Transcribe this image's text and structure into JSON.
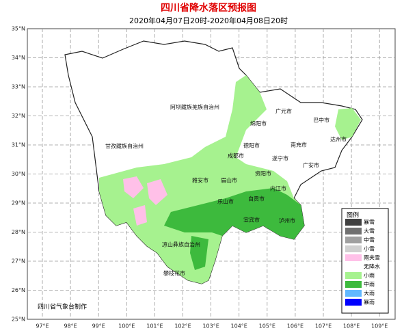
{
  "title": "四川省降水落区预报图",
  "subtitle": "2020年04月07日20时-2020年04月08日20时",
  "latitude_labels": [
    "35°N",
    "34°N",
    "33°N",
    "32°N",
    "31°N",
    "30°N",
    "29°N",
    "28°N",
    "27°N",
    "26°N",
    "25°N"
  ],
  "longitude_labels": [
    "97°E",
    "98°E",
    "99°E",
    "100°E",
    "101°E",
    "102°E",
    "103°E",
    "104°E",
    "105°E",
    "106°E",
    "107°E",
    "108°E",
    "109°E"
  ],
  "regions": [
    "阿坝藏族羌族自治州",
    "甘孜藏族自治州",
    "凉山彝族自治州",
    "攀枝花市",
    "广元市",
    "巴中市",
    "绵阳市",
    "德阳市",
    "成都市",
    "南充市",
    "达州市",
    "遂宁市",
    "广安市",
    "资阳市",
    "雅安市",
    "眉山市",
    "内江市",
    "乐山市",
    "自贡市",
    "宜宾市",
    "泸州市"
  ],
  "legend": {
    "title": "图例",
    "items": [
      {
        "label": "暴雪",
        "color": "#404040"
      },
      {
        "label": "大雪",
        "color": "#707070"
      },
      {
        "label": "中雪",
        "color": "#a0a0a0"
      },
      {
        "label": "小雪",
        "color": "#d0d0d0"
      },
      {
        "label": "雨夹雪",
        "color": "#ffc0e8"
      },
      {
        "label": "无降水",
        "color": "#ffffff"
      },
      {
        "label": "小雨",
        "color": "#a6f28f"
      },
      {
        "label": "中雨",
        "color": "#3dba3d"
      },
      {
        "label": "大雨",
        "color": "#61b8ff"
      },
      {
        "label": "暴雨",
        "color": "#0000fe"
      }
    ]
  },
  "footer": "四川省气象台制作"
}
